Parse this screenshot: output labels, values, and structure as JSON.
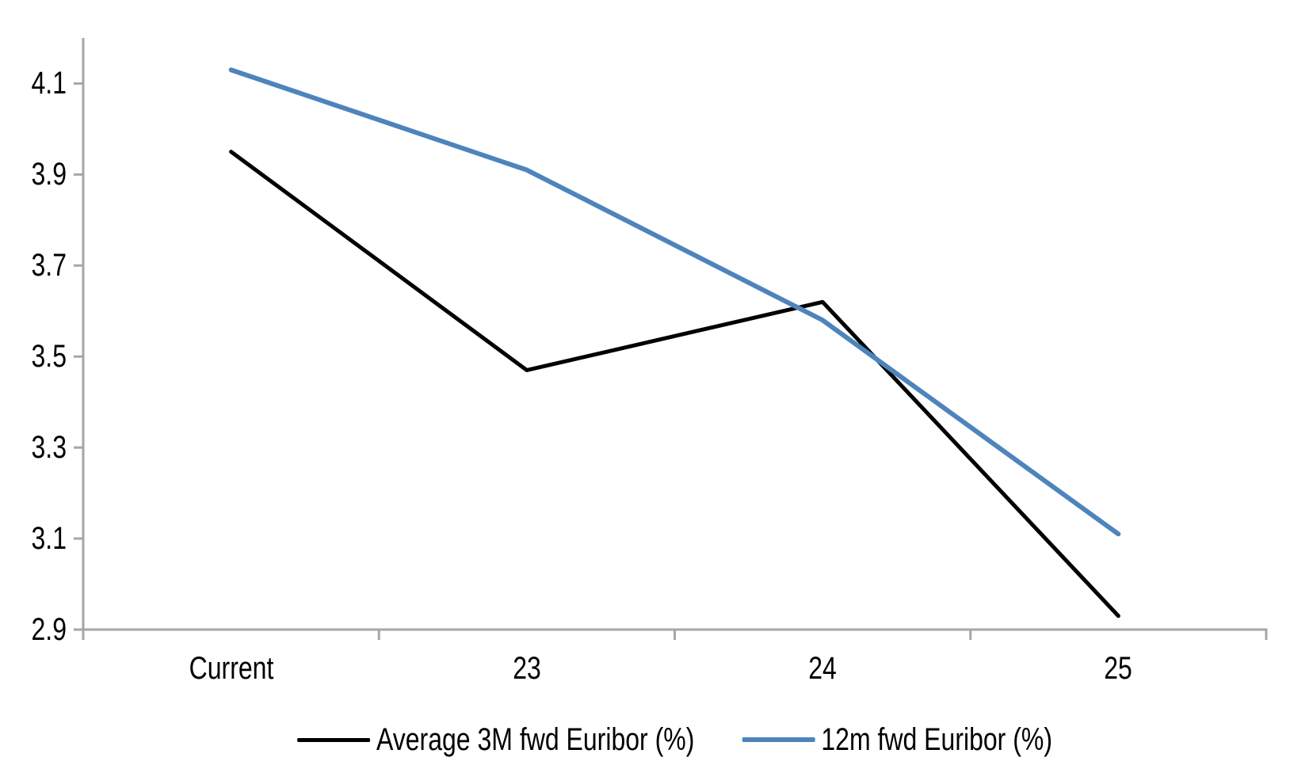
{
  "chart_data": {
    "type": "line",
    "categories": [
      "Current",
      "23",
      "24",
      "25"
    ],
    "series": [
      {
        "name": "Average 3M fwd Euribor (%)",
        "color": "#000000",
        "values": [
          3.95,
          3.47,
          3.62,
          2.93
        ]
      },
      {
        "name": "12m fwd Euribor (%)",
        "color": "#4E84BC",
        "values": [
          4.13,
          3.91,
          3.58,
          3.11
        ]
      }
    ],
    "yticks": [
      "4.1",
      "3.9",
      "3.7",
      "3.5",
      "3.3",
      "3.1",
      "2.9"
    ],
    "ytick_values": [
      4.1,
      3.9,
      3.7,
      3.5,
      3.3,
      3.1,
      2.9
    ],
    "ylim": [
      2.9,
      4.2
    ],
    "grid": false,
    "legend_position": "bottom",
    "axis_color": "#A6A6A6",
    "background": "#FFFFFF"
  }
}
